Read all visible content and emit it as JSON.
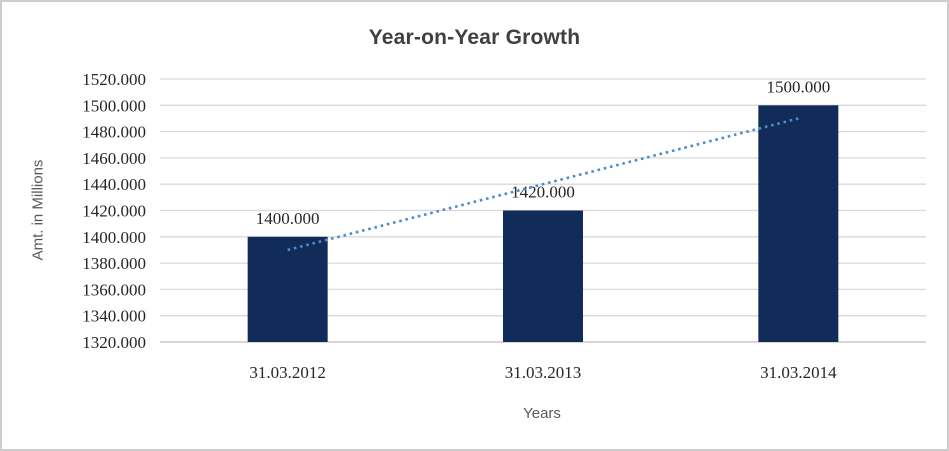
{
  "chart_data": {
    "type": "bar",
    "title": "Year-on-Year Growth",
    "xlabel": "Years",
    "ylabel": "Amt. in Millions",
    "categories": [
      "31.03.2012",
      "31.03.2013",
      "31.03.2014"
    ],
    "values": [
      1400,
      1420,
      1500
    ],
    "data_labels": [
      "1400.000",
      "1420.000",
      "1500.000"
    ],
    "ylim": [
      1320,
      1520
    ],
    "y_ticks": [
      1320,
      1340,
      1360,
      1380,
      1400,
      1420,
      1440,
      1460,
      1480,
      1500,
      1520
    ],
    "y_tick_labels": [
      "1320.000",
      "1340.000",
      "1360.000",
      "1380.000",
      "1400.000",
      "1420.000",
      "1440.000",
      "1460.000",
      "1480.000",
      "1500.000",
      "1520.000"
    ],
    "grid": true,
    "legend": "none",
    "trendline": {
      "type": "linear",
      "style": "dotted",
      "start_value": 1390,
      "end_value": 1490
    },
    "colors": {
      "bar": "#112C59",
      "trendline": "#4D8BC9",
      "gridline": "#D9D9D9",
      "axis_line": "#BFBFBF",
      "title": "#404040",
      "axis_title": "#595959",
      "tick_label": "#262626",
      "frame_border": "#CDCDCD",
      "background": "#FFFFFF"
    }
  }
}
